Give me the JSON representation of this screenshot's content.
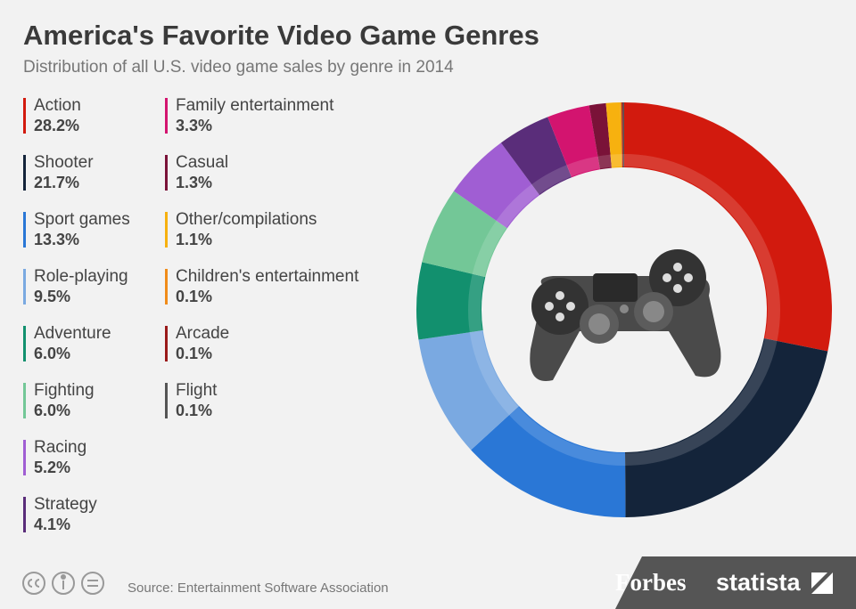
{
  "chart_data": {
    "type": "donut",
    "title": "America's Favorite Video Game Genres",
    "subtitle": "Distribution of all U.S. video game sales by genre in 2014",
    "categories": [
      "Action",
      "Shooter",
      "Sport games",
      "Role-playing",
      "Adventure",
      "Fighting",
      "Racing",
      "Strategy",
      "Family entertainment",
      "Casual",
      "Other/compilations",
      "Children's entertainment",
      "Arcade",
      "Flight"
    ],
    "values": [
      28.2,
      21.7,
      13.3,
      9.5,
      6.0,
      6.0,
      5.2,
      4.1,
      3.3,
      1.3,
      1.1,
      0.1,
      0.1,
      0.1
    ],
    "value_labels": [
      "28.2%",
      "21.7%",
      "13.3%",
      "9.5%",
      "6.0%",
      "6.0%",
      "5.2%",
      "4.1%",
      "3.3%",
      "1.3%",
      "1.1%",
      "0.1%",
      "0.1%",
      "0.1%"
    ],
    "colors": [
      "#d21a0e",
      "#14243a",
      "#2a77d6",
      "#7aa9e1",
      "#12906e",
      "#73c797",
      "#a05ed3",
      "#5a2d7a",
      "#d3146f",
      "#7a1238",
      "#f7b10f",
      "#f08c1a",
      "#9a1a1a",
      "#555555"
    ],
    "source": "Source: Entertainment Software Association",
    "brand": "Forbes",
    "publisher": "statista"
  }
}
